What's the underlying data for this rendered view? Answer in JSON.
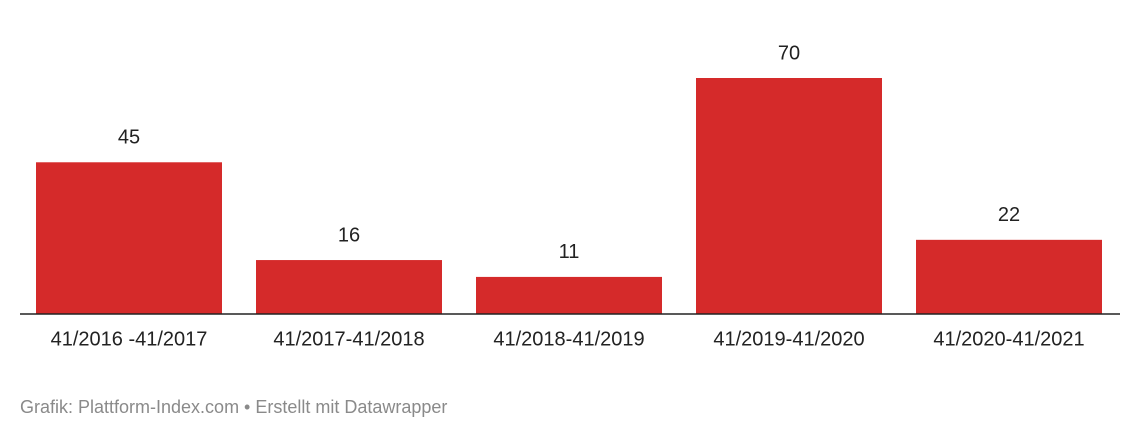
{
  "chart_data": {
    "type": "bar",
    "categories": [
      "41/2016 -41/2017",
      "41/2017-41/2018",
      "41/2018-41/2019",
      "41/2019-41/2020",
      "41/2020-41/2021"
    ],
    "values": [
      45,
      16,
      11,
      70,
      22
    ],
    "color": "#d52a2a",
    "source": "Grafik: Plattform-Index.com • Erstellt mit Datawrapper"
  }
}
